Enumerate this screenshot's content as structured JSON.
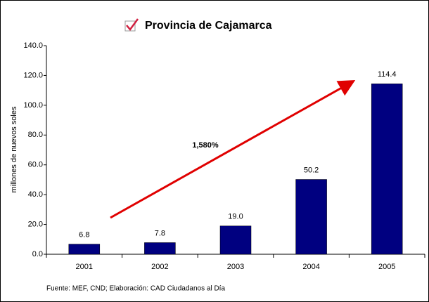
{
  "chart_data": {
    "type": "bar",
    "title": "Provincia de Cajamarca",
    "y_label": "millones de nuevos soles",
    "categories": [
      "2001",
      "2002",
      "2003",
      "2004",
      "2005"
    ],
    "values": [
      6.8,
      7.8,
      19.0,
      50.2,
      114.4
    ],
    "value_labels": [
      "6.8",
      "7.8",
      "19.0",
      "50.2",
      "114.4"
    ],
    "color": "#000080",
    "ylim": [
      0,
      140
    ],
    "yticks": [
      {
        "value": 0,
        "label": "0.0"
      },
      {
        "value": 20,
        "label": "20.0"
      },
      {
        "value": 40,
        "label": "40.0"
      },
      {
        "value": 60,
        "label": "60.0"
      },
      {
        "value": 80,
        "label": "80.0"
      },
      {
        "value": 100,
        "label": "100.0"
      },
      {
        "value": 120,
        "label": "120.0"
      },
      {
        "value": 140,
        "label": "140.0"
      }
    ],
    "annotation": "1,580%",
    "source": "Fuente: MEF, CND; Elaboración: CAD Ciudadanos al Día"
  }
}
